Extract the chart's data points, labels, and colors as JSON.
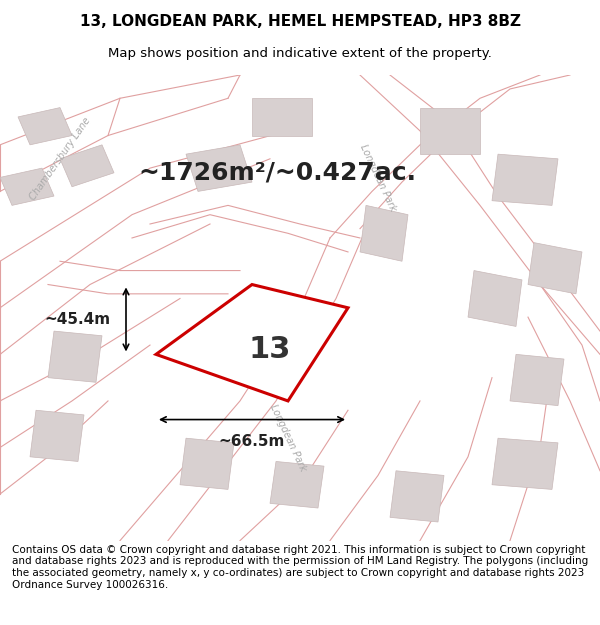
{
  "title_line1": "13, LONGDEAN PARK, HEMEL HEMPSTEAD, HP3 8BZ",
  "title_line2": "Map shows position and indicative extent of the property.",
  "area_text": "~1726m²/~0.427ac.",
  "number_label": "13",
  "dim_width": "~66.5m",
  "dim_height": "~45.4m",
  "footer_text": "Contains OS data © Crown copyright and database right 2021. This information is subject to Crown copyright and database rights 2023 and is reproduced with the permission of HM Land Registry. The polygons (including the associated geometry, namely x, y co-ordinates) are subject to Crown copyright and database rights 2023 Ordnance Survey 100026316.",
  "bg_color": "#f5f0f0",
  "map_bg_color": "#f5f0f0",
  "road_color": "#e8c8c8",
  "building_color": "#d8d0d0",
  "property_color": "#cc0000",
  "property_fill": "white",
  "road_line_color": "#e0a0a0",
  "street_label_color": "#b0b0b0",
  "figsize": [
    6.0,
    6.25
  ],
  "dpi": 100,
  "title_fontsize": 11,
  "subtitle_fontsize": 9.5,
  "area_fontsize": 18,
  "number_fontsize": 22,
  "dim_fontsize": 11,
  "footer_fontsize": 7.5,
  "map_xlim": [
    0,
    1
  ],
  "map_ylim": [
    0,
    1
  ]
}
